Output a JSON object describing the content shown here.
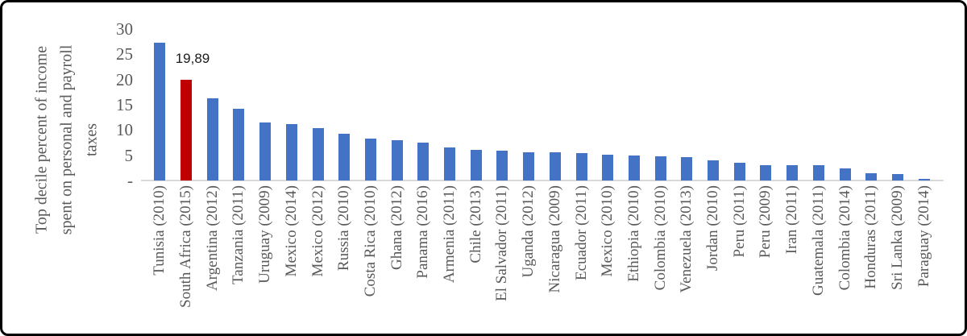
{
  "figure": {
    "background": "#ffffff",
    "border_color": "#000000"
  },
  "chart_data": {
    "type": "bar",
    "title": "",
    "xlabel": "",
    "ylabel": "Top decile percent of income spent on personal and payroll taxes",
    "ylabel_lines": [
      "Top decile percent of income",
      "spent on personal and payroll",
      "taxes"
    ],
    "ylim": [
      0,
      30
    ],
    "ytick_labels": [
      "30",
      "25",
      "20",
      "15",
      "10",
      "5",
      "-"
    ],
    "ytick_values": [
      30,
      25,
      20,
      15,
      10,
      5,
      0
    ],
    "grid": false,
    "legend": false,
    "categories": [
      "Tunisia (2010)",
      "South Africa (2015)",
      "Argentina (2012)",
      "Tanzania (2011)",
      "Uruguay (2009)",
      "Mexico (2014)",
      "Mexico (2012)",
      "Russia (2010)",
      "Costa Rica (2010)",
      "Ghana (2012)",
      "Panama (2016)",
      "Armenia (2011)",
      "Chile (2013)",
      "El Salvador (2011)",
      "Uganda (2012)",
      "Nicaragua (2009)",
      "Ecuador (2011)",
      "Mexico (2010)",
      "Ethiopia (2010)",
      "Colombia (2010)",
      "Venezuela (2013)",
      "Jordan (2010)",
      "Peru (2011)",
      "Peru (2009)",
      "Iran (2011)",
      "Guatemala (2011)",
      "Colombia (2014)",
      "Honduras (2011)",
      "Sri Lanka (2009)",
      "Paraguay (2014)"
    ],
    "values": [
      27.3,
      19.89,
      16.3,
      14.2,
      11.5,
      11.2,
      10.3,
      9.2,
      8.3,
      8.0,
      7.5,
      6.5,
      6.0,
      5.9,
      5.6,
      5.6,
      5.5,
      5.1,
      4.9,
      4.8,
      4.6,
      4.0,
      3.5,
      3.1,
      3.1,
      3.0,
      2.4,
      1.5,
      1.2,
      0.4
    ],
    "bar_colors": {
      "default": "#4472C4",
      "highlight": "#C00000"
    },
    "highlight_index": 1,
    "data_label": {
      "text": "19,89",
      "value": 19.89,
      "series_index": 1
    },
    "axis_text_color": "#595959",
    "baseline_color": "#d9d9d9"
  }
}
